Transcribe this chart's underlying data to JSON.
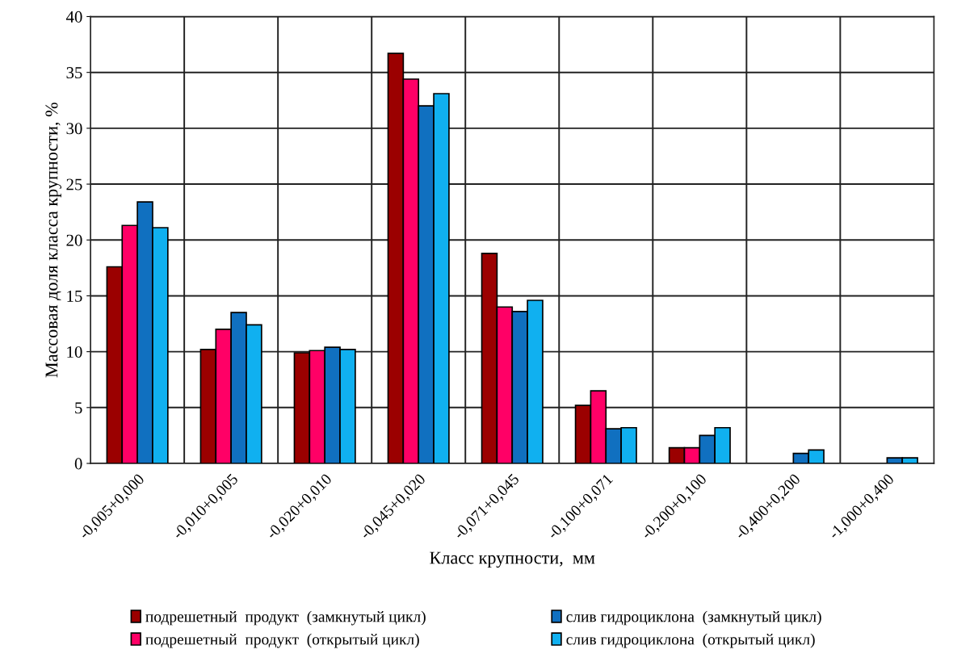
{
  "chart_data": {
    "type": "bar",
    "xlabel": "Класс крупности,  мм",
    "ylabel": "Массовая доля класса крупности, %",
    "categories": [
      "-0,005+0,000",
      "-0,010+0,005",
      "-0,020+0,010",
      "-0,045+0,020",
      "-0,071+0,045",
      "-0,100+0,071",
      "-0,200+0,100",
      "-0,400+0,200",
      "-1,000+0,400"
    ],
    "series": [
      {
        "name": "подрешетный  продукт  (замкнутый цикл)",
        "color": "#9b0000",
        "values": [
          17.6,
          10.2,
          9.9,
          36.7,
          18.8,
          5.2,
          1.4,
          null,
          null
        ]
      },
      {
        "name": "подрешетный  продукт  (открытый цикл)",
        "color": "#ff0066",
        "values": [
          21.3,
          12.0,
          10.1,
          34.4,
          14.0,
          6.5,
          1.4,
          null,
          null
        ]
      },
      {
        "name": "слив гидроциклона  (замкнутый цикл)",
        "color": "#1070c0",
        "values": [
          23.4,
          13.5,
          10.4,
          32.0,
          13.6,
          3.1,
          2.5,
          0.9,
          0.5
        ]
      },
      {
        "name": "слив гидроциклона  (открытый цикл)",
        "color": "#10b0f0",
        "values": [
          21.1,
          12.4,
          10.2,
          33.1,
          14.6,
          3.2,
          3.2,
          1.2,
          0.5
        ]
      }
    ],
    "ylim": [
      0,
      40
    ],
    "yticks": [
      0,
      5,
      10,
      15,
      20,
      25,
      30,
      35,
      40
    ],
    "grid": true,
    "legend": "bottom"
  }
}
